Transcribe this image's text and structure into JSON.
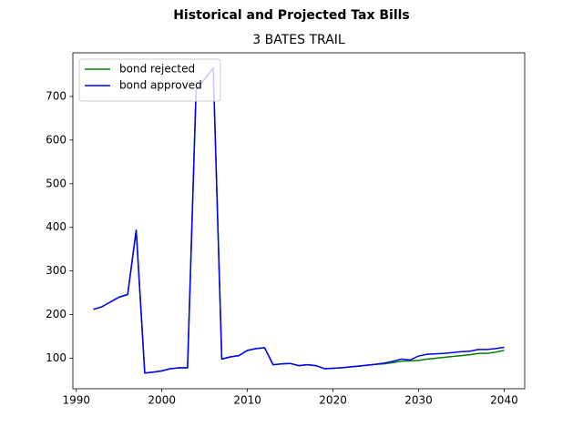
{
  "chart_data": {
    "type": "line",
    "title": "Historical and Projected Tax Bills",
    "subtitle": "3 BATES TRAIL",
    "x": [
      1992,
      1993,
      1994,
      1995,
      1996,
      1997,
      1998,
      1999,
      2000,
      2001,
      2002,
      2003,
      2004,
      2005,
      2006,
      2007,
      2008,
      2009,
      2010,
      2011,
      2012,
      2013,
      2014,
      2015,
      2016,
      2017,
      2018,
      2019,
      2020,
      2021,
      2022,
      2023,
      2024,
      2025,
      2026,
      2027,
      2028,
      2029,
      2030,
      2031,
      2032,
      2033,
      2034,
      2035,
      2036,
      2037,
      2038,
      2039,
      2040
    ],
    "series": [
      {
        "name": "bond rejected",
        "color": "#008000",
        "values": [
          212,
          218,
          229,
          240,
          246,
          393,
          66,
          68,
          71,
          76,
          78,
          78,
          715,
          740,
          765,
          98,
          103,
          106,
          118,
          122,
          124,
          85,
          87,
          88,
          83,
          85,
          83,
          76,
          77,
          78,
          80,
          82,
          84,
          86,
          87,
          90,
          93,
          94,
          95,
          98,
          100,
          102,
          104,
          106,
          108,
          111,
          111,
          114,
          118
        ]
      },
      {
        "name": "bond approved",
        "color": "#0000ff",
        "values": [
          212,
          218,
          229,
          240,
          246,
          393,
          66,
          68,
          71,
          76,
          78,
          78,
          715,
          740,
          765,
          98,
          103,
          106,
          118,
          122,
          124,
          85,
          87,
          88,
          83,
          85,
          83,
          76,
          77,
          78,
          80,
          82,
          84,
          86,
          89,
          93,
          98,
          96,
          105,
          109,
          110,
          111,
          113,
          115,
          116,
          120,
          120,
          122,
          125
        ]
      }
    ],
    "xlim": [
      1989.6,
      2042.4
    ],
    "xticks": [
      1990,
      2000,
      2010,
      2020,
      2030,
      2040
    ],
    "ylim": [
      30,
      800
    ],
    "yticks": [
      100,
      200,
      300,
      400,
      500,
      600,
      700
    ],
    "grid": false,
    "legend": "upper left"
  }
}
